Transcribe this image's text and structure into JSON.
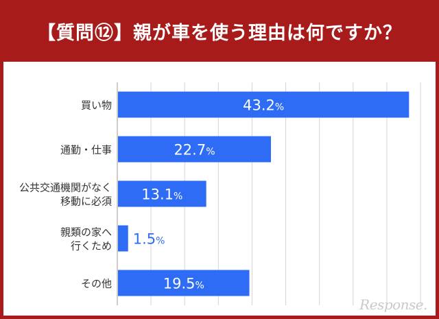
{
  "title": "【質問⑫】親が車を使う理由は何ですか？",
  "watermark": "Response.",
  "colors": {
    "header_bg": "#a81b1b",
    "bar": "#2e6cf6",
    "grid": "#d4d4d4",
    "label": "#333333",
    "value_on_bar": "#ffffff",
    "value_outside": "#2e6cf6"
  },
  "chart_data": {
    "type": "bar",
    "orientation": "horizontal",
    "categories": [
      [
        "買い物"
      ],
      [
        "通勤・仕事"
      ],
      [
        "公共交通機関がなく",
        "移動に必須"
      ],
      [
        "親類の家へ",
        "行くため"
      ],
      [
        "その他"
      ]
    ],
    "values": [
      43.2,
      22.7,
      13.1,
      1.5,
      19.5
    ],
    "value_labels": [
      "43.2%",
      "22.7%",
      "13.1%",
      "1.5%",
      "19.5%"
    ],
    "unit": "%",
    "xlim": [
      0,
      45
    ],
    "grid": true
  }
}
